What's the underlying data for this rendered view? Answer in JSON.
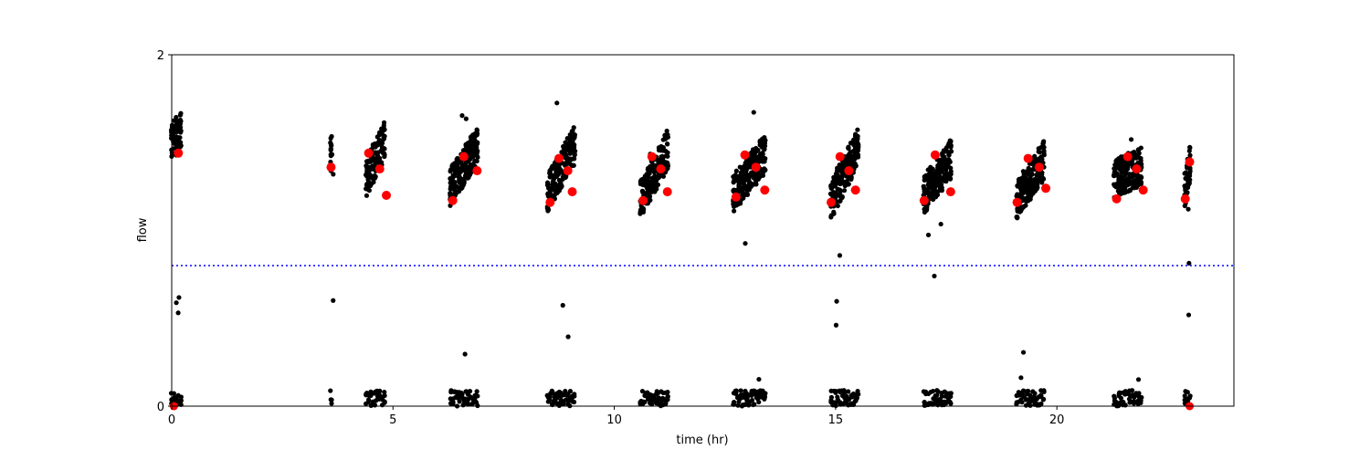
{
  "chart_data": {
    "type": "scatter",
    "title": "",
    "xlabel": "time (hr)",
    "ylabel": "flow",
    "xlim": [
      0,
      24
    ],
    "ylim": [
      0,
      2
    ],
    "xticks": [
      0,
      5,
      10,
      15,
      20
    ],
    "xtick_labels": [
      "0",
      "5",
      "10",
      "15",
      "20"
    ],
    "yticks": [
      0,
      2
    ],
    "ytick_labels": [
      "0",
      "2"
    ],
    "grid": false,
    "legend": "none",
    "threshold": {
      "y": 0.8,
      "style": "dotted",
      "color": "#0000ff"
    },
    "colors": {
      "raw": "#000000",
      "mean": "#ff0000"
    },
    "clusters": [
      {
        "x_start": 0.0,
        "x_end": 0.2,
        "high": [
          1.5,
          1.57
        ],
        "low": 1.32
      },
      {
        "x_start": 3.6,
        "x_end": 3.6,
        "high": [
          1.37,
          1.51
        ],
        "low": 1.3
      },
      {
        "x_start": 4.4,
        "x_end": 4.8,
        "high": [
          1.29,
          1.52
        ],
        "low": 1.36
      },
      {
        "x_start": 6.3,
        "x_end": 6.9,
        "high": [
          1.24,
          1.49
        ],
        "low": 1.34
      },
      {
        "x_start": 8.5,
        "x_end": 9.1,
        "high": [
          1.21,
          1.49
        ],
        "low": 1.32
      },
      {
        "x_start": 10.6,
        "x_end": 11.2,
        "high": [
          1.17,
          1.47
        ],
        "low": 1.32
      },
      {
        "x_start": 12.7,
        "x_end": 13.4,
        "high": [
          1.21,
          1.44
        ],
        "low": 1.32
      },
      {
        "x_start": 14.9,
        "x_end": 15.5,
        "high": [
          1.16,
          1.48
        ],
        "low": 1.34
      },
      {
        "x_start": 17.0,
        "x_end": 17.6,
        "high": [
          1.2,
          1.41
        ],
        "low": 1.33
      },
      {
        "x_start": 19.1,
        "x_end": 19.7,
        "high": [
          1.16,
          1.41
        ],
        "low": 1.35
      },
      {
        "x_start": 21.3,
        "x_end": 21.9,
        "high": [
          1.29,
          1.37
        ],
        "low": 1.32
      },
      {
        "x_start": 22.9,
        "x_end": 23.0,
        "high": [
          1.21,
          1.4
        ],
        "low": 1.33
      }
    ],
    "series": [
      {
        "color": "#ff0000",
        "x": [
          0.15,
          3.6,
          4.45,
          4.7,
          4.85,
          6.35,
          6.6,
          6.9,
          8.55,
          8.75,
          8.95,
          9.05,
          10.65,
          10.85,
          11.05,
          11.2,
          12.75,
          12.95,
          13.2,
          13.4,
          14.9,
          15.1,
          15.3,
          15.45,
          17.0,
          17.25,
          17.6,
          19.1,
          19.35,
          19.6,
          19.75,
          21.35,
          21.6,
          21.8,
          21.95,
          22.9,
          23.0
        ],
        "y": [
          1.44,
          1.36,
          1.44,
          1.35,
          1.2,
          1.17,
          1.42,
          1.34,
          1.16,
          1.41,
          1.34,
          1.22,
          1.17,
          1.42,
          1.35,
          1.22,
          1.19,
          1.43,
          1.36,
          1.23,
          1.16,
          1.42,
          1.34,
          1.23,
          1.17,
          1.43,
          1.22,
          1.16,
          1.41,
          1.36,
          1.24,
          1.18,
          1.42,
          1.35,
          1.23,
          1.18,
          1.39
        ]
      }
    ]
  }
}
